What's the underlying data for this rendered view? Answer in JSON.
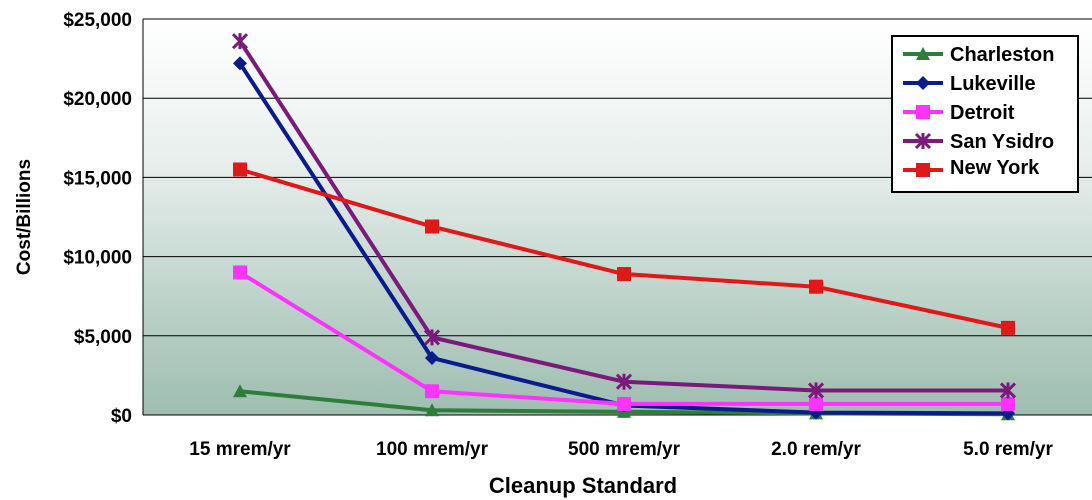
{
  "chart_data": {
    "type": "line",
    "categories": [
      "15 mrem/yr",
      "100 mrem/yr",
      "500 mrem/yr",
      "2.0 rem/yr",
      "5.0 rem/yr"
    ],
    "xlabel": "Cleanup Standard",
    "ylabel": "Cost/Billions",
    "ylim": [
      0,
      25000
    ],
    "yticks": [
      "$0",
      "$5,000",
      "$10,000",
      "$15,000",
      "$20,000",
      "$25,000"
    ],
    "grid": true,
    "legend_position": "top-right",
    "series": [
      {
        "name": "Charleston",
        "color": "#2e7d3a",
        "marker": "triangle",
        "values": [
          1500,
          300,
          200,
          100,
          50
        ]
      },
      {
        "name": "Lukeville",
        "color": "#0a1b8a",
        "marker": "diamond",
        "values": [
          22200,
          3600,
          600,
          150,
          100
        ]
      },
      {
        "name": "Detroit",
        "color": "#ff33ff",
        "marker": "square",
        "values": [
          9000,
          1500,
          700,
          700,
          700
        ]
      },
      {
        "name": "San Ysidro",
        "color": "#7a1a7a",
        "marker": "x",
        "values": [
          23600,
          4900,
          2100,
          1550,
          1550
        ]
      },
      {
        "name": "New York",
        "color": "#e01818",
        "marker": "square",
        "values": [
          15500,
          11900,
          8900,
          8100,
          5500
        ]
      }
    ]
  }
}
